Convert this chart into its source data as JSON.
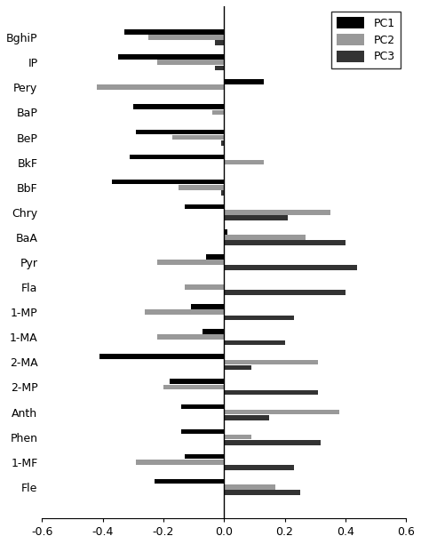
{
  "categories": [
    "BghiP",
    "IP",
    "Pery",
    "BaP",
    "BeP",
    "BkF",
    "BbF",
    "Chry",
    "BaA",
    "Pyr",
    "Fla",
    "1-MP",
    "1-MA",
    "2-MA",
    "2-MP",
    "Anth",
    "Phen",
    "1-MF",
    "Fle"
  ],
  "PC1": [
    -0.33,
    -0.35,
    0.13,
    -0.3,
    -0.29,
    -0.31,
    -0.37,
    -0.13,
    0.01,
    -0.06,
    0.0,
    -0.11,
    -0.07,
    -0.41,
    -0.18,
    -0.14,
    -0.14,
    -0.13,
    -0.23
  ],
  "PC2": [
    -0.25,
    -0.22,
    -0.42,
    -0.04,
    -0.17,
    0.13,
    -0.15,
    0.35,
    0.27,
    -0.22,
    -0.13,
    -0.26,
    -0.22,
    0.31,
    -0.2,
    0.38,
    0.09,
    -0.29,
    0.17
  ],
  "PC3": [
    -0.03,
    -0.03,
    0.0,
    0.0,
    -0.01,
    0.0,
    -0.01,
    0.21,
    0.4,
    0.44,
    0.4,
    0.23,
    0.2,
    0.09,
    0.31,
    0.15,
    0.32,
    0.23,
    0.25
  ],
  "bar_width": 0.22,
  "xlim": [
    -0.6,
    0.6
  ],
  "xticks": [
    -0.6,
    -0.4,
    -0.2,
    0.0,
    0.2,
    0.4,
    0.6
  ],
  "pc1_color": "#000000",
  "pc2_color": "#999999",
  "pc3_color": "#333333",
  "background_color": "#ffffff",
  "legend_labels": [
    "PC1",
    "PC2",
    "PC3"
  ]
}
